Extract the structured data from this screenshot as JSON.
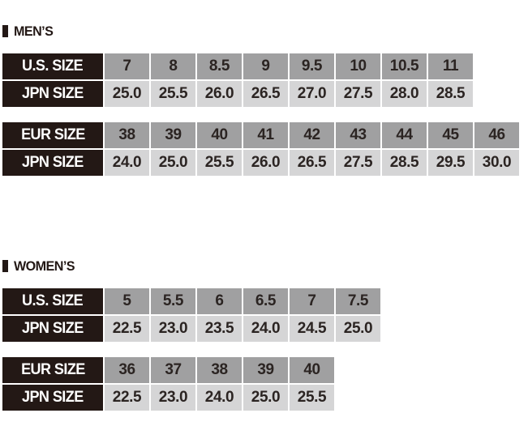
{
  "colors": {
    "header_cell_bg": "#231815",
    "header_cell_text": "#ffffff",
    "top_row_bg": "#a0a0a1",
    "bottom_row_bg": "#d5d5d6",
    "value_text": "#2b2422",
    "page_bg": "#ffffff"
  },
  "sections": [
    {
      "heading": "MEN’S",
      "tables": [
        {
          "rows": [
            {
              "label": "U.S. SIZE",
              "values": [
                "7",
                "8",
                "8.5",
                "9",
                "9.5",
                "10",
                "10.5",
                "11"
              ]
            },
            {
              "label": "JPN SIZE",
              "values": [
                "25.0",
                "25.5",
                "26.0",
                "26.5",
                "27.0",
                "27.5",
                "28.0",
                "28.5"
              ]
            }
          ]
        },
        {
          "rows": [
            {
              "label": "EUR SIZE",
              "values": [
                "38",
                "39",
                "40",
                "41",
                "42",
                "43",
                "44",
                "45",
                "46"
              ]
            },
            {
              "label": "JPN SIZE",
              "values": [
                "24.0",
                "25.0",
                "25.5",
                "26.0",
                "26.5",
                "27.5",
                "28.5",
                "29.5",
                "30.0"
              ]
            }
          ]
        }
      ]
    },
    {
      "heading": "WOMEN’S",
      "tables": [
        {
          "rows": [
            {
              "label": "U.S. SIZE",
              "values": [
                "5",
                "5.5",
                "6",
                "6.5",
                "7",
                "7.5"
              ]
            },
            {
              "label": "JPN SIZE",
              "values": [
                "22.5",
                "23.0",
                "23.5",
                "24.0",
                "24.5",
                "25.0"
              ]
            }
          ]
        },
        {
          "rows": [
            {
              "label": "EUR SIZE",
              "values": [
                "36",
                "37",
                "38",
                "39",
                "40"
              ]
            },
            {
              "label": "JPN SIZE",
              "values": [
                "22.5",
                "23.0",
                "24.0",
                "25.0",
                "25.5"
              ]
            }
          ]
        }
      ]
    }
  ]
}
